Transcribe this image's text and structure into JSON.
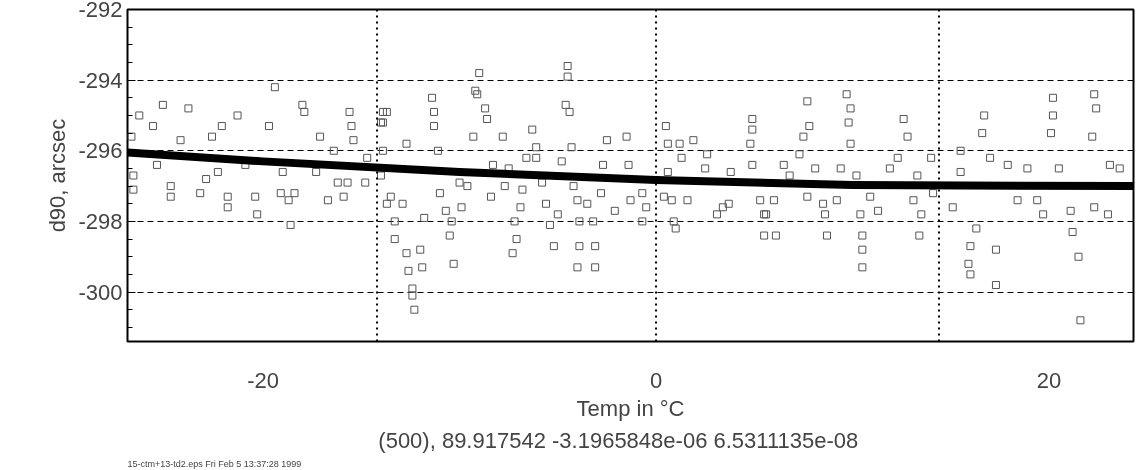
{
  "chart_data": {
    "type": "scatter",
    "xlabel": "Temp in °C",
    "ylabel": "d90, arcsec",
    "annotations": [
      "(500), 89.917542   -3.1965848e-06   6.5311135e-08",
      "15-ctm+13-td2.eps Fri Feb  5 13:37:28 1999"
    ],
    "xlim": [
      -26.9,
      24.3
    ],
    "ylim": [
      -301.4,
      -292
    ],
    "xticks": [
      -20,
      0,
      20
    ],
    "yticks": [
      -292,
      -294,
      -296,
      -298,
      -300
    ],
    "grid": "y",
    "marker": "square",
    "ref_lines": [
      {
        "axis": "x",
        "value": -14.2,
        "line_style": "dotted"
      },
      {
        "axis": "x",
        "value": 0,
        "line_style": "dotted"
      },
      {
        "axis": "x",
        "value": 14.4,
        "line_style": "dotted"
      }
    ],
    "series": [
      {
        "color": "#555555",
        "x": [
          -19.4,
          -18.0,
          -17.9,
          -17.1,
          -16.4,
          -15.6,
          -15.5,
          -13.9,
          -14.0,
          -25.1,
          -26.3,
          -23.8,
          -21.3,
          -22.1,
          -19.7,
          -25.6,
          -24.2,
          -22.6,
          -24.7,
          -24.7,
          -23.2,
          -22.9,
          -21.8,
          -21.8,
          -20.4,
          -20.3,
          -19.1,
          -18.7,
          -18.6,
          -18.4,
          -16.7,
          -15.7,
          -15.9,
          -14.8,
          -26.6,
          -26.6,
          -25.4,
          -22.3,
          -19.0,
          -17.3,
          -20.9,
          -13.9,
          -14.7,
          -15.4,
          -16.2,
          -14.0,
          -13.7,
          -26.7,
          -9.0,
          -9.2,
          -9.1,
          -8.7,
          -8.6,
          -11.4,
          -11.3,
          -11.3,
          -13.7,
          -13.9,
          -12.7,
          -11.1,
          -9.3,
          -7.8,
          -6.3,
          -4.5,
          -4.5,
          -4.6,
          -4.4,
          -6.6,
          -6.1,
          -6.1,
          -8.3,
          -7.5,
          -4.3,
          -4.8,
          -2.5,
          -1.5,
          -2.7,
          -1.4,
          -13.5,
          -12.9,
          -13.3,
          -13.3,
          -12.7,
          -12.6,
          -12.0,
          -11.9,
          -12.4,
          -12.4,
          -12.3,
          -11.8,
          -11.0,
          -10.7,
          -10.4,
          -10.5,
          -10.3,
          -9.9,
          -10.0,
          -9.6,
          -8.4,
          -7.7,
          -6.8,
          -7.3,
          -7.1,
          -7.2,
          -6.9,
          -5.6,
          -5.0,
          -5.4,
          -5.2,
          -5.8,
          -4.2,
          -4.0,
          -3.5,
          -3.9,
          -3.9,
          -4.0,
          -3.2,
          -3.1,
          -3.1,
          -2.8,
          -2.1,
          -1.3,
          -0.7,
          -0.5,
          -0.7,
          0.5,
          0.6,
          1.2,
          1.3,
          1.9,
          2.6,
          2.5,
          3.8,
          0.6,
          0.4,
          0.8,
          0.9,
          1.0,
          1.6,
          3.1,
          3.4,
          3.7,
          4.9,
          4.9,
          4.8,
          4.9,
          5.3,
          5.5,
          5.5,
          7.7,
          7.8,
          7.5,
          7.3,
          6.5,
          6.8,
          8.1,
          9.7,
          9.9,
          9.8,
          9.9,
          9.4,
          10.2,
          12.6,
          12.8,
          12.3,
          11.9,
          13.3,
          14.0,
          6.0,
          5.6,
          6.1,
          7.7,
          8.5,
          8.6,
          8.7,
          9.2,
          10.4,
          10.5,
          10.5,
          10.5,
          10.9,
          11.3,
          13.1,
          13.5,
          13.4,
          14.1,
          15.5,
          15.5,
          15.1,
          16.3,
          16.0,
          15.9,
          16.0,
          17.3,
          17.3,
          16.7,
          16.6,
          17.0,
          17.9,
          18.9,
          19.4,
          18.4,
          19.7,
          20.2,
          20.2,
          20.1,
          20.5,
          21.1,
          21.2,
          21.5,
          21.6,
          22.3,
          22.4,
          22.2,
          23.1,
          23.6,
          23.0,
          22.3
        ],
        "values": [
          -294.2,
          -294.7,
          -294.9,
          -295.6,
          -296.0,
          -294.9,
          -295.3,
          -294.9,
          -295.2,
          -294.7,
          -295.0,
          -294.8,
          -295.0,
          -295.3,
          -295.3,
          -295.3,
          -295.7,
          -295.6,
          -297.0,
          -297.3,
          -297.2,
          -296.8,
          -297.3,
          -297.6,
          -297.3,
          -297.8,
          -297.2,
          -297.4,
          -298.1,
          -297.2,
          -297.4,
          -296.9,
          -297.3,
          -296.9,
          -297.1,
          -296.7,
          -296.4,
          -296.6,
          -296.6,
          -296.6,
          -296.4,
          -296.0,
          -296.2,
          -295.7,
          -296.9,
          -296.7,
          -297.5,
          -295.6,
          -293.8,
          -294.3,
          -294.4,
          -294.8,
          -295.1,
          -294.5,
          -294.9,
          -295.3,
          -294.9,
          -295.2,
          -295.8,
          -296.0,
          -295.6,
          -295.6,
          -295.4,
          -293.6,
          -293.9,
          -294.7,
          -294.9,
          -296.2,
          -295.9,
          -296.2,
          -296.4,
          -296.5,
          -295.9,
          -296.3,
          -295.7,
          -295.6,
          -296.4,
          -296.4,
          -297.3,
          -297.5,
          -298.0,
          -298.5,
          -298.9,
          -299.4,
          -298.8,
          -299.3,
          -299.9,
          -300.1,
          -300.5,
          -297.9,
          -297.2,
          -297.7,
          -298.0,
          -298.4,
          -299.2,
          -297.6,
          -296.9,
          -297.0,
          -297.3,
          -297.0,
          -297.1,
          -298.9,
          -298.5,
          -298.0,
          -297.6,
          -297.5,
          -297.8,
          -298.1,
          -298.7,
          -296.9,
          -297.0,
          -297.4,
          -297.5,
          -298.0,
          -298.7,
          -299.3,
          -298.0,
          -298.7,
          -299.3,
          -297.2,
          -297.7,
          -297.4,
          -298.0,
          -297.6,
          -297.2,
          -295.3,
          -295.8,
          -295.8,
          -296.2,
          -295.7,
          -296.1,
          -296.5,
          -296.6,
          -296.6,
          -297.3,
          -297.4,
          -298.0,
          -298.2,
          -297.4,
          -297.8,
          -297.6,
          -297.5,
          -295.1,
          -295.4,
          -295.8,
          -296.4,
          -297.4,
          -297.8,
          -298.4,
          -294.6,
          -295.3,
          -295.6,
          -296.1,
          -296.4,
          -296.7,
          -296.5,
          -294.4,
          -294.8,
          -295.2,
          -295.8,
          -296.5,
          -296.7,
          -295.1,
          -295.6,
          -296.2,
          -296.5,
          -296.7,
          -296.2,
          -297.4,
          -297.8,
          -298.4,
          -297.3,
          -297.5,
          -297.8,
          -298.4,
          -297.4,
          -297.8,
          -298.4,
          -298.8,
          -299.3,
          -297.3,
          -297.7,
          -297.4,
          -297.8,
          -298.4,
          -297.2,
          -296.0,
          -296.6,
          -297.6,
          -298.2,
          -298.7,
          -299.2,
          -299.5,
          -298.8,
          -299.8,
          -295.0,
          -295.5,
          -296.2,
          -296.4,
          -296.5,
          -297.4,
          -297.4,
          -297.8,
          -294.5,
          -295.0,
          -295.5,
          -296.5,
          -297.7,
          -298.3,
          -299.0,
          -300.8,
          -294.4,
          -294.8,
          -295.6,
          -296.4,
          -296.5,
          -297.8,
          -297.6
        ]
      },
      {
        "type": "line",
        "color": "#000000",
        "marker": "none",
        "line_style": "solid",
        "x": [
          -26.9,
          -20,
          -10,
          0,
          10,
          24.3
        ],
        "values": [
          -296.05,
          -296.3,
          -296.6,
          -296.83,
          -296.97,
          -297.0
        ]
      }
    ]
  }
}
